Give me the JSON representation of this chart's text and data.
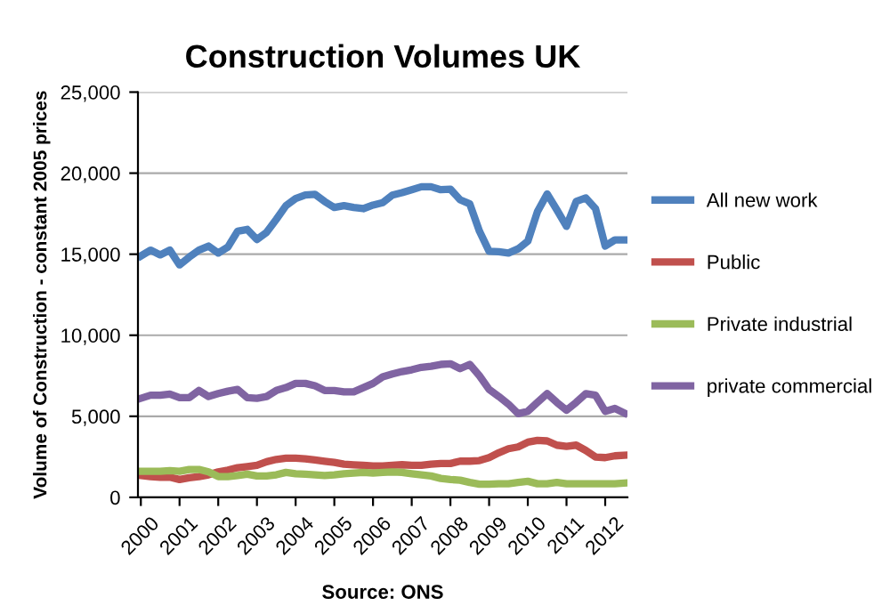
{
  "chart_data": {
    "type": "line",
    "title": "Construction Volumes UK",
    "ylabel": "Volume of Construction - constant 2005 prices",
    "categories": [
      "2000",
      null,
      null,
      null,
      "2001",
      null,
      null,
      null,
      "2002",
      null,
      null,
      null,
      "2003",
      null,
      null,
      null,
      "2004",
      null,
      null,
      null,
      "2005",
      null,
      null,
      null,
      "2006",
      null,
      null,
      null,
      "2007",
      null,
      null,
      null,
      "2008",
      null,
      null,
      null,
      "2009",
      null,
      null,
      null,
      "2010",
      null,
      null,
      null,
      "2011",
      null,
      null,
      null,
      "2012",
      null,
      null
    ],
    "series": [
      {
        "name": "All new work",
        "color": "#4f81bd",
        "values": [
          14890,
          15250,
          14960,
          15250,
          14340,
          14820,
          15250,
          15500,
          15070,
          15440,
          16420,
          16530,
          15910,
          16350,
          17150,
          17990,
          18430,
          18650,
          18690,
          18250,
          17880,
          17990,
          17880,
          17810,
          18030,
          18180,
          18650,
          18800,
          18980,
          19160,
          19160,
          18980,
          19010,
          18360,
          18100,
          16420,
          15180,
          15150,
          15070,
          15330,
          15800,
          17630,
          18720,
          17740,
          16720,
          18250,
          18470,
          17810,
          15500,
          15880,
          15880
        ]
      },
      {
        "name": "Public",
        "color": "#c0504d",
        "values": [
          1350,
          1280,
          1240,
          1240,
          1100,
          1210,
          1280,
          1390,
          1570,
          1680,
          1830,
          1900,
          1980,
          2200,
          2340,
          2420,
          2420,
          2380,
          2310,
          2230,
          2160,
          2050,
          2010,
          1980,
          1940,
          1940,
          1980,
          2010,
          1980,
          1980,
          2050,
          2090,
          2090,
          2230,
          2230,
          2270,
          2450,
          2750,
          3000,
          3110,
          3400,
          3510,
          3480,
          3220,
          3150,
          3220,
          2890,
          2490,
          2450,
          2560,
          2600
        ]
      },
      {
        "name": "Private industrial",
        "color": "#9bbb59",
        "values": [
          1610,
          1610,
          1610,
          1650,
          1610,
          1720,
          1720,
          1570,
          1280,
          1280,
          1350,
          1430,
          1320,
          1320,
          1390,
          1540,
          1460,
          1430,
          1390,
          1350,
          1390,
          1460,
          1500,
          1540,
          1500,
          1540,
          1570,
          1540,
          1460,
          1390,
          1320,
          1170,
          1100,
          1060,
          920,
          810,
          810,
          840,
          840,
          920,
          990,
          840,
          840,
          920,
          840,
          840,
          840,
          840,
          840,
          840,
          880
        ]
      },
      {
        "name": "private commercial",
        "color": "#8064a2",
        "values": [
          6110,
          6300,
          6300,
          6370,
          6150,
          6150,
          6590,
          6220,
          6400,
          6550,
          6660,
          6150,
          6110,
          6220,
          6590,
          6770,
          7030,
          7030,
          6880,
          6590,
          6590,
          6510,
          6510,
          6770,
          7030,
          7430,
          7610,
          7760,
          7870,
          8020,
          8090,
          8200,
          8240,
          7940,
          8200,
          7500,
          6660,
          6220,
          5750,
          5160,
          5310,
          5860,
          6400,
          5860,
          5380,
          5860,
          6400,
          6300,
          5310,
          5490,
          5200
        ]
      }
    ],
    "ylim": [
      0,
      25000
    ],
    "yticks": [
      0,
      {
        "value": 5000,
        "label": "5,000"
      },
      {
        "value": 10000,
        "label": "10,000"
      },
      {
        "value": 15000,
        "label": "15,000"
      },
      {
        "value": 20000,
        "label": "20,000"
      },
      {
        "value": 25000,
        "label": "25,000"
      }
    ],
    "grid": "y",
    "legend": "right",
    "marker": "none",
    "line_style": "solid",
    "annotations": [
      "Source: ONS"
    ]
  }
}
